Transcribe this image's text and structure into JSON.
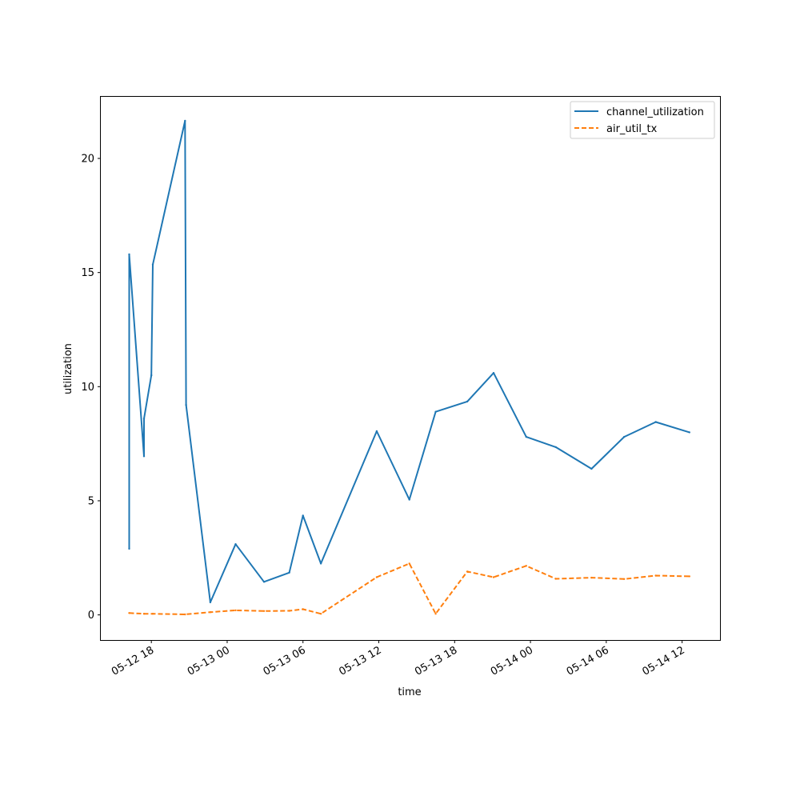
{
  "chart_data": {
    "type": "line",
    "xlabel": "time",
    "ylabel": "utilization",
    "xlim": [
      "2022-05-12 14:00",
      "2022-05-14 15:00"
    ],
    "ylim": [
      -1.1,
      22.7
    ],
    "x_ticks": [
      {
        "t": "2022-05-12 18:00",
        "label": "05-12 18"
      },
      {
        "t": "2022-05-13 00:00",
        "label": "05-13 00"
      },
      {
        "t": "2022-05-13 06:00",
        "label": "05-13 06"
      },
      {
        "t": "2022-05-13 12:00",
        "label": "05-13 12"
      },
      {
        "t": "2022-05-13 18:00",
        "label": "05-13 18"
      },
      {
        "t": "2022-05-14 00:00",
        "label": "05-14 00"
      },
      {
        "t": "2022-05-14 06:00",
        "label": "05-14 06"
      },
      {
        "t": "2022-05-14 12:00",
        "label": "05-14 12"
      }
    ],
    "y_ticks": [
      0,
      5,
      10,
      15,
      20
    ],
    "legend": {
      "position": "top-right"
    },
    "series": [
      {
        "name": "channel_utilization",
        "color": "#1f77b4",
        "style": "solid",
        "points": [
          {
            "t": "2022-05-12 16:15",
            "y": 2.9
          },
          {
            "t": "2022-05-12 16:15",
            "y": 15.8
          },
          {
            "t": "2022-05-12 17:25",
            "y": 6.95
          },
          {
            "t": "2022-05-12 17:25",
            "y": 8.6
          },
          {
            "t": "2022-05-12 18:00",
            "y": 10.5
          },
          {
            "t": "2022-05-12 18:07",
            "y": 15.35
          },
          {
            "t": "2022-05-12 20:40",
            "y": 21.65
          },
          {
            "t": "2022-05-12 20:45",
            "y": 9.2
          },
          {
            "t": "2022-05-12 22:40",
            "y": 0.55
          },
          {
            "t": "2022-05-13 00:40",
            "y": 3.1
          },
          {
            "t": "2022-05-13 02:55",
            "y": 1.45
          },
          {
            "t": "2022-05-13 04:55",
            "y": 1.85
          },
          {
            "t": "2022-05-13 06:00",
            "y": 4.35
          },
          {
            "t": "2022-05-13 07:25",
            "y": 2.25
          },
          {
            "t": "2022-05-13 11:50",
            "y": 8.05
          },
          {
            "t": "2022-05-13 14:25",
            "y": 5.05
          },
          {
            "t": "2022-05-13 16:30",
            "y": 8.9
          },
          {
            "t": "2022-05-13 19:00",
            "y": 9.35
          },
          {
            "t": "2022-05-13 21:05",
            "y": 10.6
          },
          {
            "t": "2022-05-13 23:40",
            "y": 7.8
          },
          {
            "t": "2022-05-14 02:00",
            "y": 7.35
          },
          {
            "t": "2022-05-14 04:50",
            "y": 6.4
          },
          {
            "t": "2022-05-14 07:25",
            "y": 7.8
          },
          {
            "t": "2022-05-14 09:55",
            "y": 8.45
          },
          {
            "t": "2022-05-14 12:35",
            "y": 8.0
          }
        ]
      },
      {
        "name": "air_util_tx",
        "color": "#ff7f0e",
        "style": "dashed",
        "points": [
          {
            "t": "2022-05-12 16:15",
            "y": 0.08
          },
          {
            "t": "2022-05-12 17:25",
            "y": 0.05
          },
          {
            "t": "2022-05-12 18:07",
            "y": 0.05
          },
          {
            "t": "2022-05-12 20:40",
            "y": 0.02
          },
          {
            "t": "2022-05-12 22:40",
            "y": 0.12
          },
          {
            "t": "2022-05-13 00:40",
            "y": 0.2
          },
          {
            "t": "2022-05-13 02:55",
            "y": 0.17
          },
          {
            "t": "2022-05-13 04:55",
            "y": 0.18
          },
          {
            "t": "2022-05-13 06:00",
            "y": 0.25
          },
          {
            "t": "2022-05-13 07:25",
            "y": 0.05
          },
          {
            "t": "2022-05-13 11:50",
            "y": 1.65
          },
          {
            "t": "2022-05-13 14:25",
            "y": 2.25
          },
          {
            "t": "2022-05-13 16:30",
            "y": 0.05
          },
          {
            "t": "2022-05-13 19:00",
            "y": 1.9
          },
          {
            "t": "2022-05-13 21:05",
            "y": 1.65
          },
          {
            "t": "2022-05-13 23:40",
            "y": 2.15
          },
          {
            "t": "2022-05-14 02:00",
            "y": 1.58
          },
          {
            "t": "2022-05-14 04:50",
            "y": 1.63
          },
          {
            "t": "2022-05-14 07:25",
            "y": 1.57
          },
          {
            "t": "2022-05-14 09:55",
            "y": 1.72
          },
          {
            "t": "2022-05-14 12:35",
            "y": 1.69
          }
        ]
      }
    ]
  }
}
